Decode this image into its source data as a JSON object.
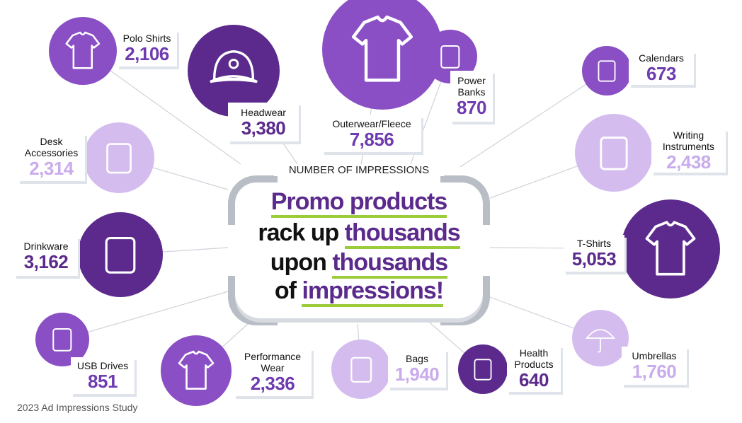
{
  "center": {
    "title": "NUMBER OF IMPRESSIONS",
    "line1": {
      "highlight": "Promo products",
      "rest": ""
    },
    "line2": {
      "plain": "rack up ",
      "highlight": "thousands"
    },
    "line3": {
      "plain": "upon ",
      "highlight": "thousands"
    },
    "line4": {
      "plain": "of ",
      "highlight": "impressions!"
    }
  },
  "colors": {
    "dark": "#5b2a8c",
    "medium": "#8a4fc4",
    "light": "#d4bdee",
    "accent_green": "#9bcc3a",
    "bracket_gray": "#b9bec6"
  },
  "items": [
    {
      "label": "Polo Shirts",
      "value": "2,106",
      "shade": "medium",
      "icon": "polo-shirt-icon"
    },
    {
      "label": "Headwear",
      "value": "3,380",
      "shade": "dark",
      "icon": "cap-icon"
    },
    {
      "label": "Outerwear/Fleece",
      "value": "7,856",
      "shade": "medium",
      "icon": "jacket-icon"
    },
    {
      "label": "Power Banks",
      "value": "870",
      "shade": "medium",
      "icon": "power-bank-icon"
    },
    {
      "label": "Calendars",
      "value": "673",
      "shade": "medium",
      "icon": "calendar-icon"
    },
    {
      "label": "Writing Instruments",
      "value": "2,438",
      "shade": "light",
      "icon": "pencil-cup-icon"
    },
    {
      "label": "T-Shirts",
      "value": "5,053",
      "shade": "dark",
      "icon": "t-shirt-icon"
    },
    {
      "label": "Umbrellas",
      "value": "1,760",
      "shade": "light",
      "icon": "umbrella-icon"
    },
    {
      "label": "Health Products",
      "value": "640",
      "shade": "dark",
      "icon": "lotion-icon"
    },
    {
      "label": "Bags",
      "value": "1,940",
      "shade": "light",
      "icon": "bag-icon"
    },
    {
      "label": "Performance Wear",
      "value": "2,336",
      "shade": "medium",
      "icon": "v-neck-shirt-icon"
    },
    {
      "label": "USB Drives",
      "value": "851",
      "shade": "medium",
      "icon": "usb-drive-icon"
    },
    {
      "label": "Drinkware",
      "value": "3,162",
      "shade": "dark",
      "icon": "travel-mug-icon"
    },
    {
      "label": "Desk Accessories",
      "value": "2,314",
      "shade": "light",
      "icon": "notebook-icon"
    }
  ],
  "footer": "2023 Ad Impressions Study"
}
